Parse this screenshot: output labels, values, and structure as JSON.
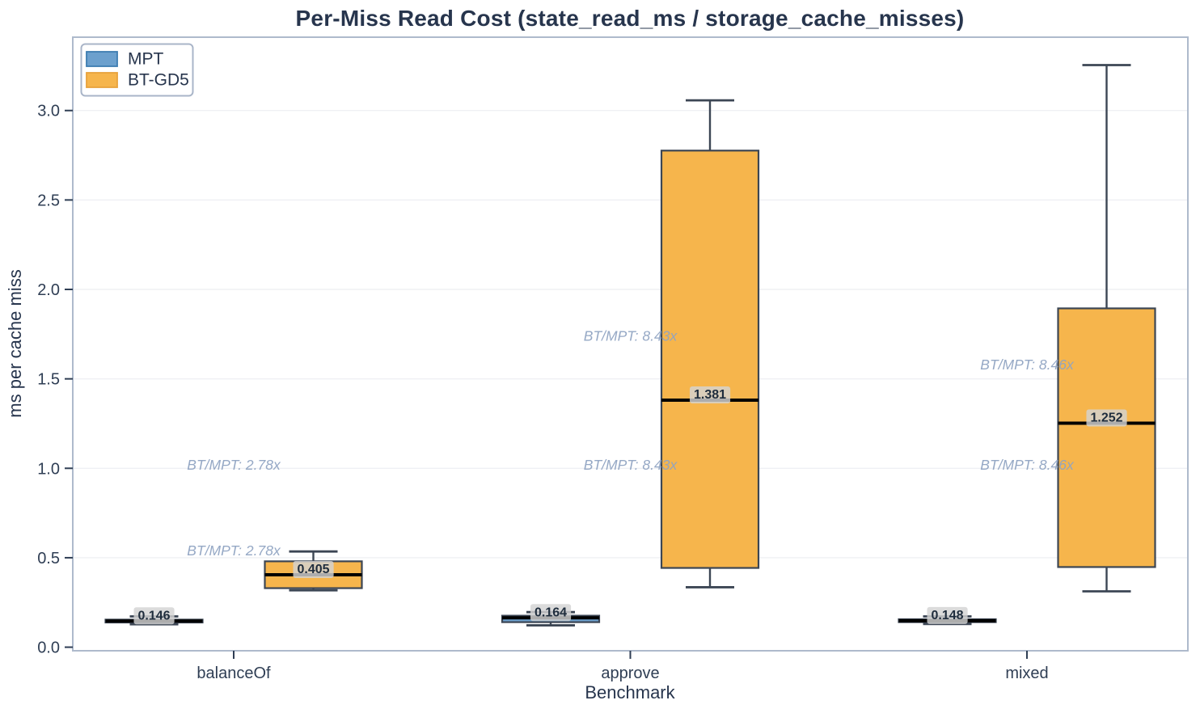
{
  "chart_data": {
    "type": "box",
    "title": "Per-Miss Read Cost (state_read_ms / storage_cache_misses)",
    "xlabel": "Benchmark",
    "ylabel": "ms per cache miss",
    "categories": [
      "balanceOf",
      "approve",
      "mixed"
    ],
    "yticks": [
      0.0,
      0.5,
      1.0,
      1.5,
      2.0,
      2.5,
      3.0
    ],
    "ylim": [
      -0.02,
      3.41
    ],
    "grid": "horizontal",
    "legend_position": "upper-left",
    "series": [
      {
        "name": "MPT",
        "fill": "#6CA0CD",
        "legend_edge": "#3E7DB1",
        "boxes": [
          {
            "category": "balanceOf",
            "whisker_low": 0.128,
            "q1": 0.138,
            "median": 0.146,
            "q3": 0.154,
            "whisker_high": 0.172,
            "median_label": "0.146"
          },
          {
            "category": "approve",
            "whisker_low": 0.122,
            "q1": 0.14,
            "median": 0.164,
            "q3": 0.176,
            "whisker_high": 0.196,
            "median_label": "0.164"
          },
          {
            "category": "mixed",
            "whisker_low": 0.13,
            "q1": 0.14,
            "median": 0.148,
            "q3": 0.156,
            "whisker_high": 0.172,
            "median_label": "0.148"
          }
        ]
      },
      {
        "name": "BT-GD5",
        "fill": "#F6B54C",
        "legend_edge": "#E8A23C",
        "boxes": [
          {
            "category": "balanceOf",
            "whisker_low": 0.318,
            "q1": 0.33,
            "median": 0.405,
            "q3": 0.48,
            "whisker_high": 0.535,
            "median_label": "0.405"
          },
          {
            "category": "approve",
            "whisker_low": 0.335,
            "q1": 0.443,
            "median": 1.381,
            "q3": 2.776,
            "whisker_high": 3.057,
            "median_label": "1.381"
          },
          {
            "category": "mixed",
            "whisker_low": 0.312,
            "q1": 0.448,
            "median": 1.252,
            "q3": 1.894,
            "whisker_high": 3.254,
            "median_label": "1.252"
          }
        ]
      }
    ],
    "annotations": [
      {
        "category": "balanceOf",
        "text": "BT/MPT: 2.78x",
        "y": 1.02
      },
      {
        "category": "balanceOf",
        "text": "BT/MPT: 2.78x",
        "y": 0.54
      },
      {
        "category": "approve",
        "text": "BT/MPT: 8.43x",
        "y": 1.74
      },
      {
        "category": "approve",
        "text": "BT/MPT: 8.43x",
        "y": 1.02
      },
      {
        "category": "mixed",
        "text": "BT/MPT: 8.46x",
        "y": 1.58
      },
      {
        "category": "mixed",
        "text": "BT/MPT: 8.46x",
        "y": 1.02
      }
    ],
    "colors": {
      "box_edge": "#3C4654",
      "median_line": "#000000",
      "spine": "#AEBACC",
      "grid": "#EFF0F4",
      "text": "#27354D",
      "annotation": "#8FA3C2",
      "median_label_bg": "rgba(211,211,211,0.82)"
    }
  }
}
